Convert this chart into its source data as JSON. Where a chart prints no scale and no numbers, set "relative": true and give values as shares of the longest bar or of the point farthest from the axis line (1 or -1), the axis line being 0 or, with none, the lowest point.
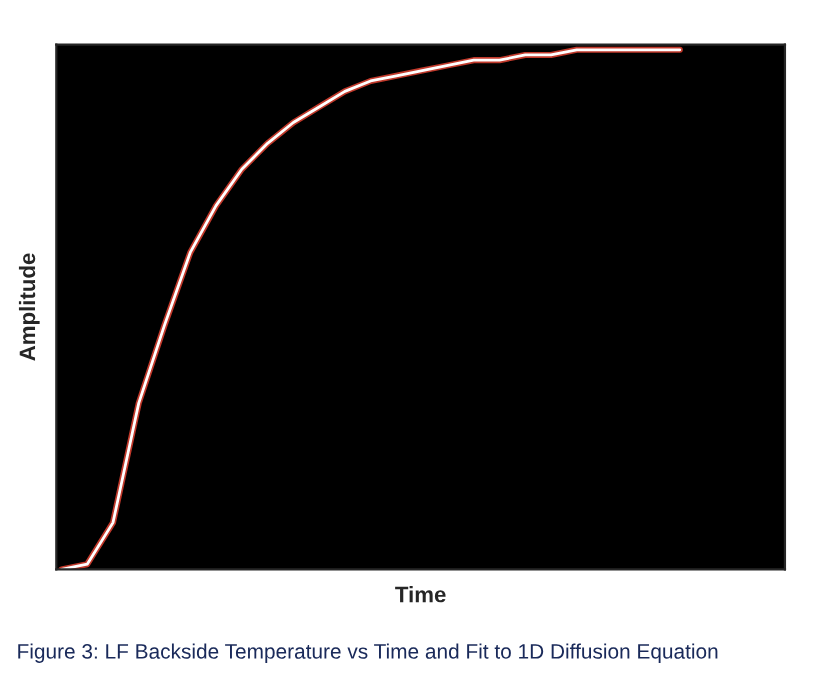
{
  "chart_data": {
    "type": "line",
    "relative": true,
    "xlabel": "Time",
    "ylabel": "Amplitude",
    "annotations": [
      "Figure 3: LF Backside Temperature vs Time and Fit to 1D Diffusion Equation"
    ],
    "categories": [
      null,
      null,
      null,
      null,
      null,
      null,
      null,
      null,
      null,
      null,
      null,
      null,
      null,
      null,
      null,
      null,
      null,
      null,
      null,
      null,
      null,
      null,
      null,
      null,
      null
    ],
    "series": [
      {
        "color": "#c0392b",
        "values": [
          0,
          0.01,
          0.09,
          0.32,
          0.47,
          0.61,
          0.7,
          0.77,
          0.82,
          0.86,
          0.89,
          0.92,
          0.94,
          0.95,
          0.96,
          0.97,
          0.98,
          0.98,
          0.99,
          0.99,
          1,
          1,
          1,
          1,
          1
        ]
      },
      {
        "color": "#ffffff",
        "values": [
          0,
          0.01,
          0.09,
          0.32,
          0.47,
          0.61,
          0.7,
          0.77,
          0.82,
          0.86,
          0.89,
          0.92,
          0.94,
          0.95,
          0.96,
          0.97,
          0.98,
          0.98,
          0.99,
          0.99,
          1,
          1,
          1,
          1,
          1
        ]
      }
    ],
    "legend": false
  }
}
